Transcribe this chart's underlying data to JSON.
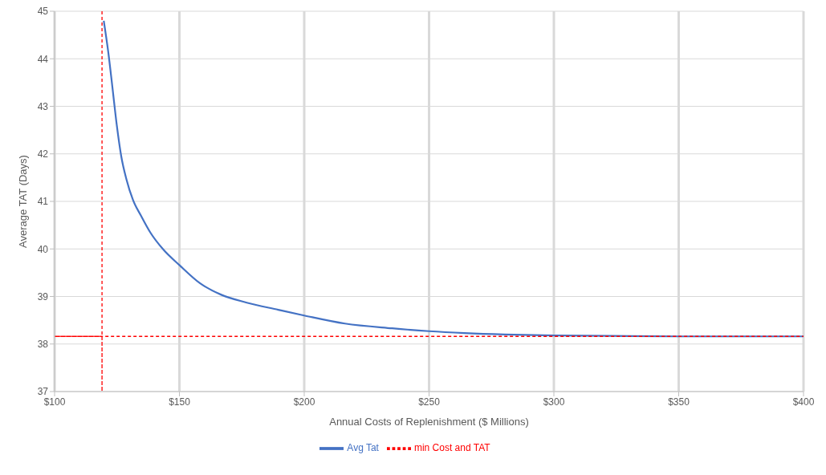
{
  "chart_data": {
    "type": "line",
    "xlabel": "Annual  Costs of Replenishment ($ Millions)",
    "ylabel": "Average TAT (Days)",
    "xlim": [
      100,
      400
    ],
    "xticks": [
      {
        "value": 100,
        "label": "$100"
      },
      {
        "value": 150,
        "label": "$150"
      },
      {
        "value": 200,
        "label": "$200"
      },
      {
        "value": 250,
        "label": "$250"
      },
      {
        "value": 300,
        "label": "$300"
      },
      {
        "value": 350,
        "label": "$350"
      },
      {
        "value": 400,
        "label": "$400"
      }
    ],
    "ylim": [
      37,
      45
    ],
    "yticks": [
      37,
      38,
      39,
      40,
      41,
      42,
      43,
      44,
      45
    ],
    "grid": true,
    "legend": "bottom",
    "marker": "none",
    "series": [
      {
        "name": "Avg Tat",
        "color": "#4472c4",
        "line_style": "solid",
        "x": [
          119.7,
          121.5,
          123.1,
          124.9,
          126.7,
          128.8,
          131.4,
          134.6,
          138.3,
          143.5,
          150,
          158.2,
          166.6,
          177,
          189.6,
          200,
          216.3,
          235.2,
          250,
          264.2,
          280.2,
          300,
          322.4,
          350,
          400
        ],
        "values": [
          44.8,
          44.14,
          43.43,
          42.61,
          41.95,
          41.46,
          41.03,
          40.7,
          40.35,
          39.99,
          39.66,
          39.28,
          39.04,
          38.87,
          38.72,
          38.6,
          38.43,
          38.33,
          38.27,
          38.23,
          38.2,
          38.18,
          38.17,
          38.16,
          38.16
        ]
      },
      {
        "name": "min Cost and TAT",
        "color": "#ff0000",
        "line_style": "dashed",
        "x": [
          119,
          119,
          119,
          100,
          400
        ],
        "values": [
          45,
          37,
          38.16,
          38.16,
          38.16
        ]
      }
    ]
  }
}
